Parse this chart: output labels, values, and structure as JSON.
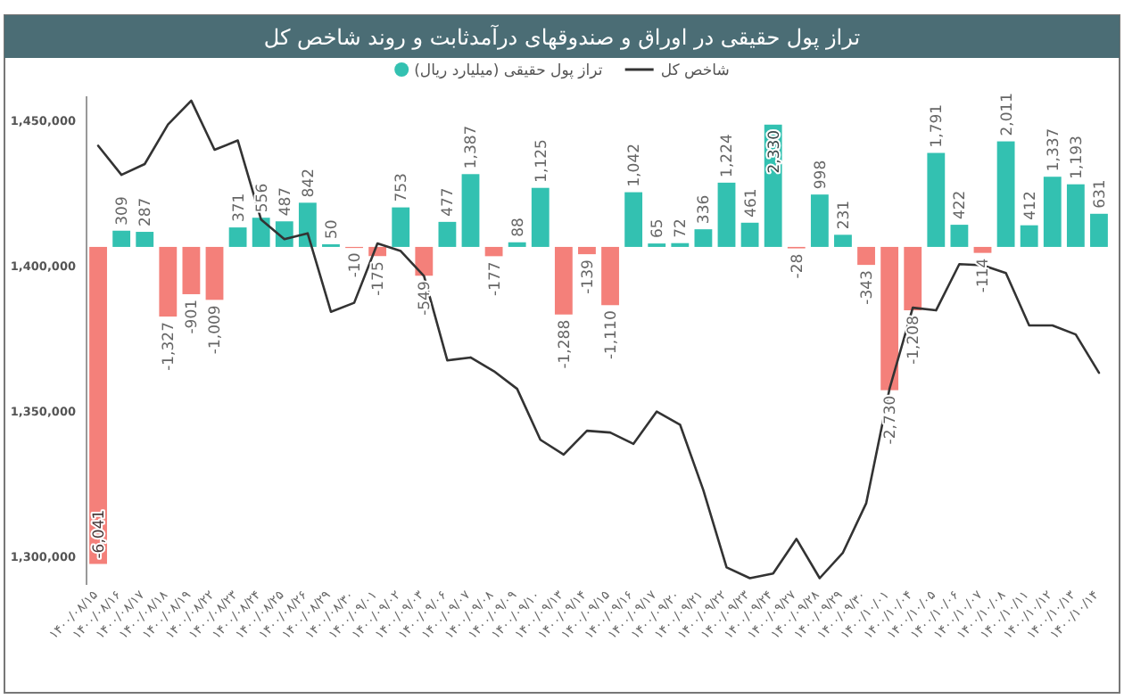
{
  "chart_data": {
    "type": "bar",
    "title": "تراز پول حقیقی در اوراق و صندوقهای درآمدثابت و روند شاخص کل",
    "legend": "top",
    "categories": [
      "۱۴۰۰/۰۸/۱۵",
      "۱۴۰۰/۰۸/۱۶",
      "۱۴۰۰/۰۸/۱۷",
      "۱۴۰۰/۰۸/۱۸",
      "۱۴۰۰/۰۸/۱۹",
      "۱۴۰۰/۰۸/۲۲",
      "۱۴۰۰/۰۸/۲۳",
      "۱۴۰۰/۰۸/۲۴",
      "۱۴۰۰/۰۸/۲۵",
      "۱۴۰۰/۰۸/۲۶",
      "۱۴۰۰/۰۸/۲۹",
      "۱۴۰۰/۰۸/۳۰",
      "۱۴۰۰/۰۹/۰۱",
      "۱۴۰۰/۰۹/۰۲",
      "۱۴۰۰/۰۹/۰۳",
      "۱۴۰۰/۰۹/۰۶",
      "۱۴۰۰/۰۹/۰۷",
      "۱۴۰۰/۰۹/۰۸",
      "۱۴۰۰/۰۹/۰۹",
      "۱۴۰۰/۰۹/۱۰",
      "۱۴۰۰/۰۹/۱۳",
      "۱۴۰۰/۰۹/۱۴",
      "۱۴۰۰/۰۹/۱۵",
      "۱۴۰۰/۰۹/۱۶",
      "۱۴۰۰/۰۹/۱۷",
      "۱۴۰۰/۰۹/۲۰",
      "۱۴۰۰/۰۹/۲۱",
      "۱۴۰۰/۰۹/۲۲",
      "۱۴۰۰/۰۹/۲۳",
      "۱۴۰۰/۰۹/۲۴",
      "۱۴۰۰/۰۹/۲۷",
      "۱۴۰۰/۰۹/۲۸",
      "۱۴۰۰/۰۹/۲۹",
      "۱۴۰۰/۰۹/۳۰",
      "۱۴۰۰/۱۰/۰۱",
      "۱۴۰۰/۱۰/۰۴",
      "۱۴۰۰/۱۰/۰۵",
      "۱۴۰۰/۱۰/۰۶",
      "۱۴۰۰/۱۰/۰۷",
      "۱۴۰۰/۱۰/۰۸",
      "۱۴۰۰/۱۰/۱۱",
      "۱۴۰۰/۱۰/۱۲",
      "۱۴۰۰/۱۰/۱۳",
      "۱۴۰۰/۱۰/۱۴"
    ],
    "ylim": [
      1290000,
      1458000
    ],
    "yticks": [
      {
        "value": 1300000,
        "label": "1,300,000"
      },
      {
        "value": 1350000,
        "label": "1,350,000"
      },
      {
        "value": 1400000,
        "label": "1,400,000"
      },
      {
        "value": 1450000,
        "label": "1,450,000"
      }
    ],
    "y2lim": [
      -6440,
      2870
    ],
    "series": [
      {
        "axis": "y2",
        "name": "تراز پول حقیقی (میلیارد ریال)",
        "color": "#33c1b1",
        "values": [
          -6041,
          309,
          287,
          -1327,
          -901,
          -1009,
          371,
          556,
          487,
          842,
          50,
          -10,
          -175,
          753,
          -549,
          477,
          1387,
          -177,
          88,
          1125,
          -1288,
          -139,
          -1110,
          1042,
          65,
          72,
          336,
          1224,
          461,
          2330,
          -28,
          998,
          231,
          -343,
          -2730,
          -1208,
          1791,
          422,
          -114,
          2011,
          412,
          1337,
          1193,
          631
        ],
        "colors": [
          "#f4807a",
          "#33c1b1",
          "#33c1b1",
          "#f4807a",
          "#f4807a",
          "#f4807a",
          "#33c1b1",
          "#33c1b1",
          "#33c1b1",
          "#33c1b1",
          "#33c1b1",
          "#f4807a",
          "#f4807a",
          "#33c1b1",
          "#f4807a",
          "#33c1b1",
          "#33c1b1",
          "#f4807a",
          "#33c1b1",
          "#33c1b1",
          "#f4807a",
          "#f4807a",
          "#f4807a",
          "#33c1b1",
          "#33c1b1",
          "#33c1b1",
          "#33c1b1",
          "#33c1b1",
          "#33c1b1",
          "#33c1b1",
          "#f4807a",
          "#33c1b1",
          "#33c1b1",
          "#f4807a",
          "#f4807a",
          "#f4807a",
          "#33c1b1",
          "#33c1b1",
          "#f4807a",
          "#33c1b1",
          "#33c1b1",
          "#33c1b1",
          "#33c1b1",
          "#33c1b1"
        ],
        "value_labels": [
          "-6,041",
          "309",
          "287",
          "-1,327",
          "-901",
          "-1,009",
          "371",
          "556",
          "487",
          "842",
          "50",
          "-10",
          "-175",
          "753",
          "-549",
          "477",
          "1,387",
          "-177",
          "88",
          "1,125",
          "-1,288",
          "-139",
          "-1,110",
          "1,042",
          "65",
          "72",
          "336",
          "1,224",
          "461",
          "2,330",
          "-28",
          "998",
          "231",
          "-343",
          "-2,730",
          "-1,208",
          "1,791",
          "422",
          "-114",
          "2,011",
          "412",
          "1,337",
          "1,193",
          "631"
        ]
      },
      {
        "type": "line",
        "name": "شاخص کل",
        "color": "#333333",
        "values": [
          1441000,
          1431000,
          1434700,
          1448300,
          1456500,
          1439600,
          1442800,
          1415600,
          1408900,
          1410900,
          1383900,
          1387000,
          1407400,
          1404800,
          1396200,
          1367200,
          1368200,
          1363500,
          1357400,
          1339900,
          1334800,
          1343000,
          1342400,
          1338500,
          1349600,
          1345100,
          1322600,
          1296000,
          1292300,
          1293900,
          1305800,
          1292300,
          1301100,
          1318100,
          1357400,
          1385300,
          1384400,
          1400300,
          1399900,
          1397200,
          1379200,
          1379200,
          1376100,
          1362900
        ]
      }
    ]
  }
}
